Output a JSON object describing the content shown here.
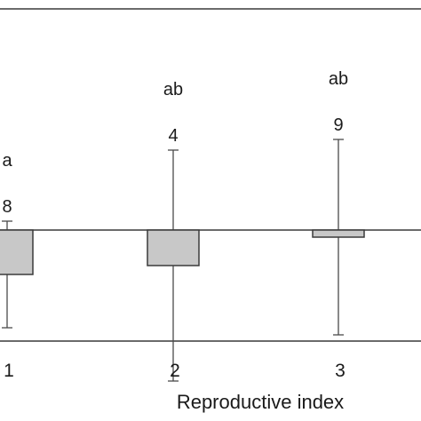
{
  "chart_data": {
    "type": "bar",
    "categories": [
      "1",
      "2",
      "3"
    ],
    "values": [
      -0.5,
      -0.4,
      -0.08
    ],
    "error": [
      0.6,
      1.3,
      1.1
    ],
    "counts": [
      "8",
      "4",
      "9"
    ],
    "letters": [
      "a",
      "ab",
      "ab"
    ],
    "xlabel": "Reproductive index",
    "ylim": [
      -1.2,
      2.4
    ],
    "colors": {
      "bar_fill": "#c8c8c8",
      "bar_stroke": "#3a3a3a",
      "axis": "#3a3a3a",
      "error": "#4a4a4a"
    }
  }
}
